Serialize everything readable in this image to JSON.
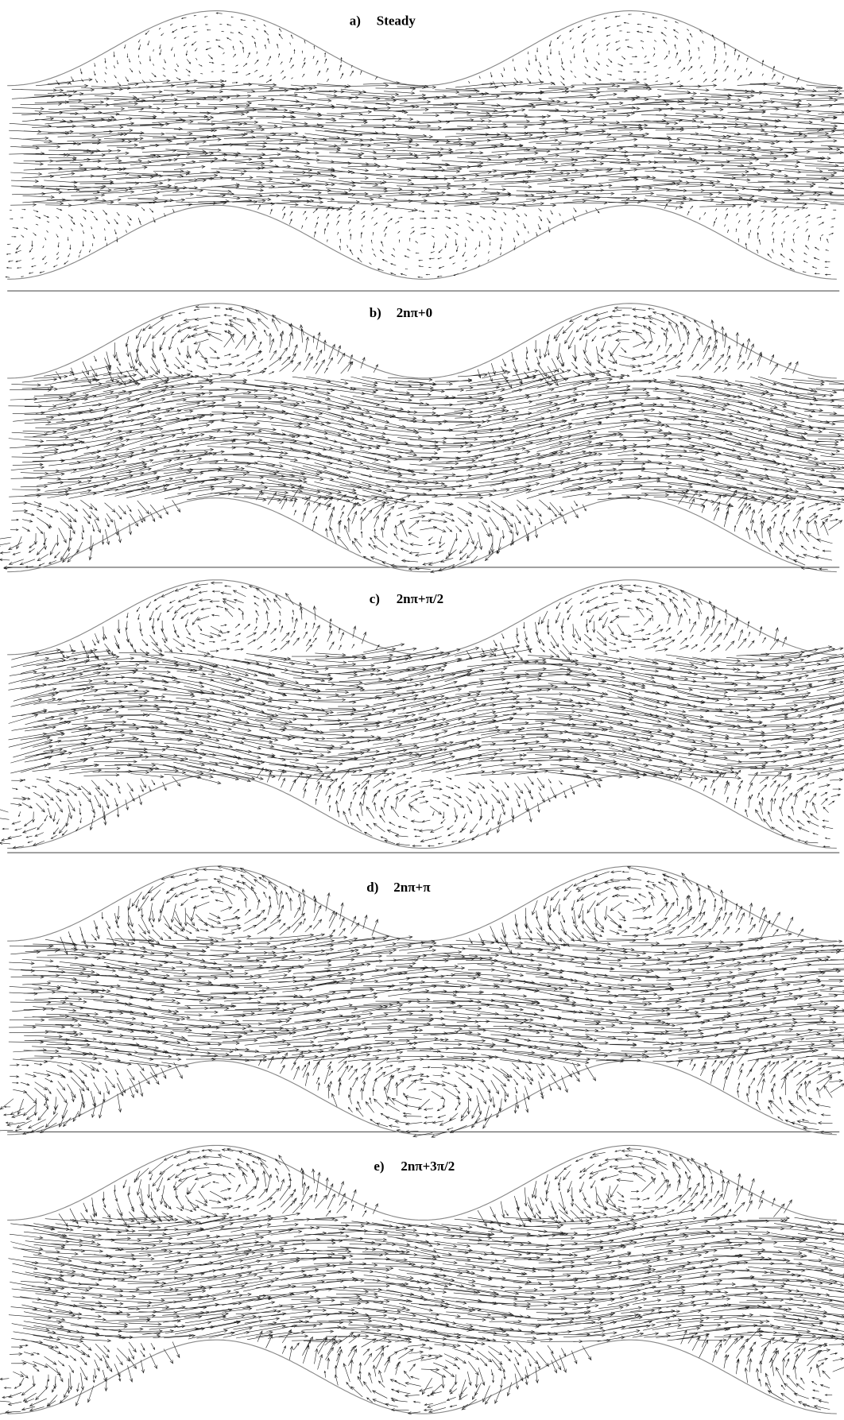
{
  "panels": [
    {
      "letter": "a)",
      "title": "Steady"
    },
    {
      "letter": "b)",
      "title": "2nπ+0"
    },
    {
      "letter": "c)",
      "title": "2nπ+π/2"
    },
    {
      "letter": "d)",
      "title": "2nπ+π"
    },
    {
      "letter": "e)",
      "title": "2nπ+3π/2"
    }
  ]
}
